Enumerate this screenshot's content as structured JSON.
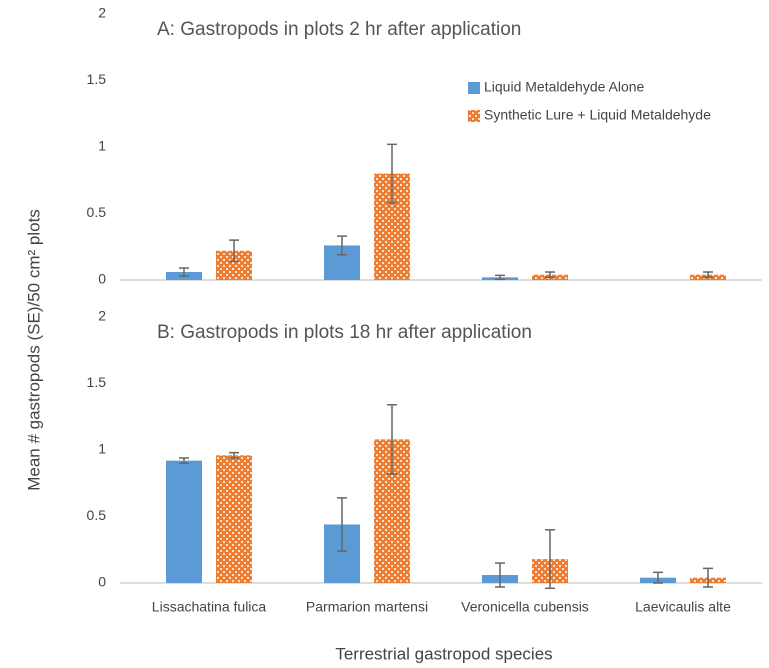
{
  "ylabel": "Mean # gastropods (SE)/50 cm² plots",
  "xlabel": "Terrestrial gastropod species",
  "chart_data": [
    {
      "type": "bar",
      "title": "A: Gastropods in plots 2 hr after application",
      "ylim": [
        0,
        2
      ],
      "yticks": [
        0,
        0.5,
        1,
        1.5,
        2
      ],
      "legend": "upper right",
      "series": [
        {
          "name": "Liquid Metaldehyde Alone",
          "color": "#5b9bd5",
          "values": [
            0.06,
            0.26,
            0.02,
            0
          ],
          "errors": [
            0.03,
            0.07,
            0.015,
            null
          ]
        },
        {
          "name": "Synthetic Lure + Liquid Metaldehyde",
          "color": "#ed7d31",
          "values": [
            0.22,
            0.8,
            0.04,
            0.04
          ],
          "errors": [
            0.08,
            0.22,
            0.02,
            0.02
          ]
        }
      ]
    },
    {
      "type": "bar",
      "title": "B: Gastropods in plots 18 hr after application",
      "categories": [
        "Lissachatina fulica",
        "Parmarion martensi",
        "Veronicella cubensis",
        "Laevicaulis alte"
      ],
      "ylim": [
        0,
        2
      ],
      "yticks": [
        0,
        0.5,
        1,
        1.5,
        2
      ],
      "series": [
        {
          "color": "#5b9bd5",
          "values": [
            0.92,
            0.44,
            0.06,
            0.04
          ],
          "errors": [
            0.02,
            0.2,
            0.09,
            0.04
          ]
        },
        {
          "color": "#ed7d31",
          "values": [
            0.96,
            1.08,
            0.18,
            0.04
          ],
          "errors": [
            0.02,
            0.26,
            0.22,
            0.07
          ]
        }
      ]
    }
  ]
}
